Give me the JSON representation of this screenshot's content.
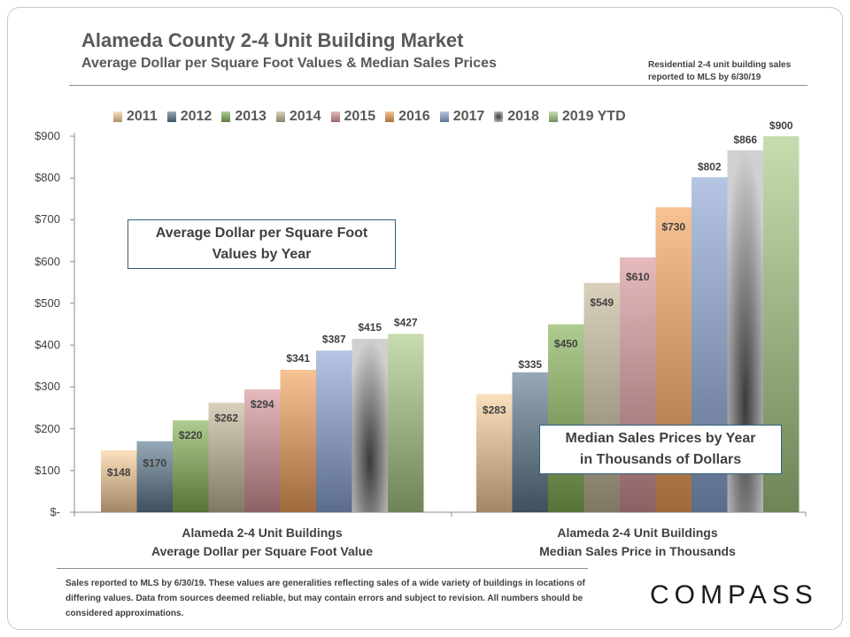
{
  "header": {
    "title": "Alameda County 2-4 Unit Building Market",
    "subtitle": "Average Dollar per Square Foot Values & Median Sales Prices",
    "note_line1": "Residential 2-4 unit building sales",
    "note_line2": "reported  to MLS by 6/30/19"
  },
  "callouts": {
    "left_line1": "Average Dollar per Square Foot",
    "left_line2": "Values by Year",
    "right_line1": "Median Sales Prices by Year",
    "right_line2": "in Thousands of Dollars"
  },
  "footnote": "Sales reported to MLS by 6/30/19. These values are generalities reflecting sales of a wide variety of buildings in locations of differing values. Data from sources deemed reliable, but may contain errors and subject to revision. All numbers  should be considered approximations.",
  "brand": {
    "logo_text": "COMPASS"
  },
  "chart_data": {
    "type": "bar",
    "categories": [
      "Alameda 2-4 Unit Buildings Average Dollar per Square Foot Value",
      "Alameda 2-4 Unit Buildings Median Sales Price in Thousands"
    ],
    "category_lines": [
      [
        "Alameda 2-4 Unit Buildings",
        "Average Dollar per Square Foot Value"
      ],
      [
        "Alameda 2-4 Unit Buildings",
        "Median Sales Price in Thousands"
      ]
    ],
    "series": [
      {
        "name": "2011",
        "values": [
          148,
          283
        ],
        "color": "#f9cf9a"
      },
      {
        "name": "2012",
        "values": [
          170,
          335
        ],
        "color": "#5f7b8e"
      },
      {
        "name": "2013",
        "values": [
          220,
          450
        ],
        "color": "#86b155"
      },
      {
        "name": "2014",
        "values": [
          262,
          549
        ],
        "color": "#c4b898"
      },
      {
        "name": "2015",
        "values": [
          294,
          610
        ],
        "color": "#d9959a"
      },
      {
        "name": "2016",
        "values": [
          341,
          730
        ],
        "color": "#f4a35b"
      },
      {
        "name": "2017",
        "values": [
          387,
          802
        ],
        "color": "#8ea6d6"
      },
      {
        "name": "2018",
        "values": [
          415,
          866
        ],
        "color": "#9a9a9a"
      },
      {
        "name": "2019 YTD",
        "values": [
          427,
          900
        ],
        "color": "#a9cb86"
      }
    ],
    "data_labels": [
      [
        "$148",
        "$170",
        "$220",
        "$262",
        "$294",
        "$341",
        "$387",
        "$415",
        "$427"
      ],
      [
        "$283",
        "$335",
        "$450",
        "$549",
        "$610",
        "$730",
        "$802",
        "$866",
        "$900"
      ]
    ],
    "y_ticks": [
      0,
      100,
      200,
      300,
      400,
      500,
      600,
      700,
      800,
      900
    ],
    "y_tick_labels": [
      "$-",
      "$100",
      "$200",
      "$300",
      "$400",
      "$500",
      "$600",
      "$700",
      "$800",
      "$900"
    ],
    "ylim": [
      0,
      900
    ],
    "grid": false,
    "legend_position": "top"
  }
}
